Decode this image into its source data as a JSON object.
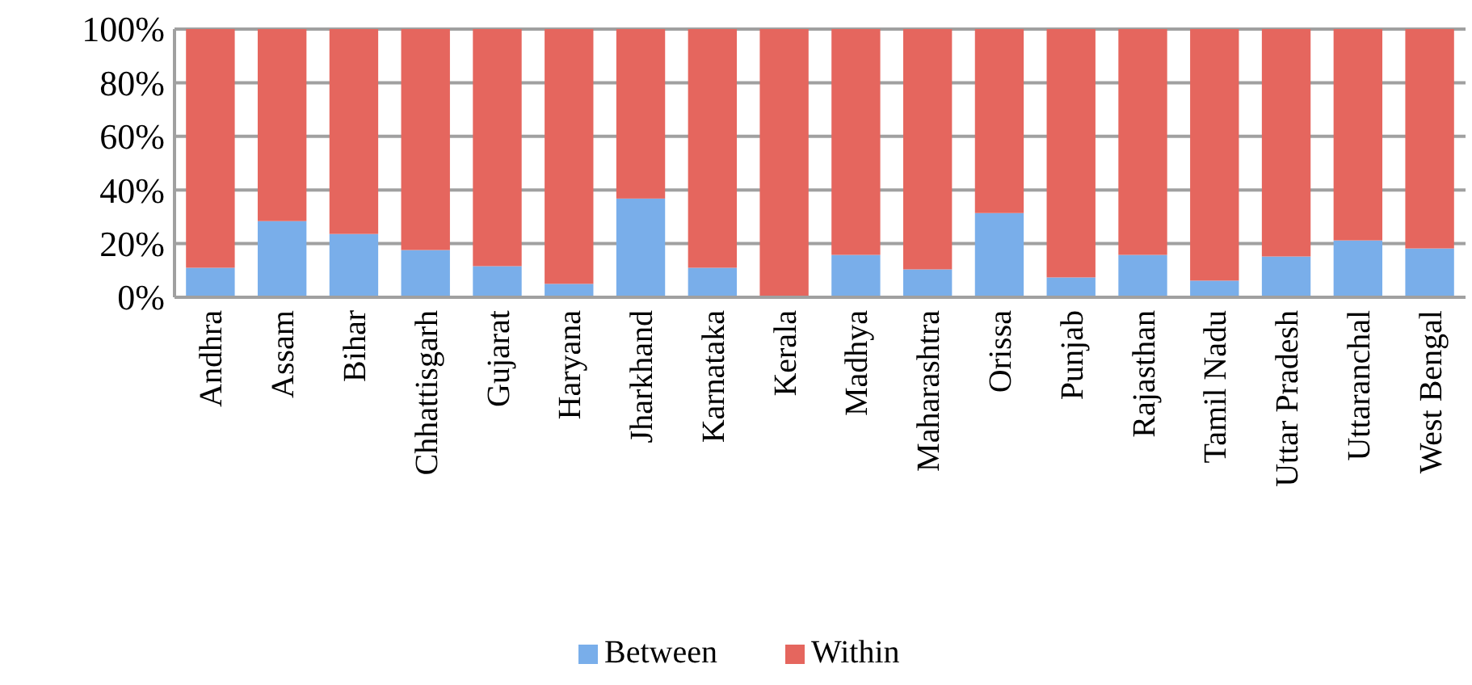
{
  "chart_data": {
    "type": "bar",
    "stacked": true,
    "categories": [
      "Andhra",
      "Assam",
      "Bihar",
      "Chhattisgarh",
      "Gujarat",
      "Haryana",
      "Jharkhand",
      "Karnataka",
      "Kerala",
      "Madhya",
      "Maharashtra",
      "Orissa",
      "Punjab",
      "Rajasthan",
      "Tamil Nadu",
      "Uttar Pradesh",
      "Uttaranchal",
      "West Bengal"
    ],
    "series": [
      {
        "name": "Between",
        "color": "#79aeea",
        "values": [
          11,
          28.4,
          23.6,
          17.6,
          11.6,
          5,
          36.8,
          11,
          null,
          15.8,
          10.4,
          31.4,
          7.4,
          15.8,
          6.2,
          15.2,
          21.2,
          18.2
        ]
      },
      {
        "name": "Within",
        "color": "#e5665e",
        "values": [
          89,
          71.6,
          76.4,
          82.4,
          88.4,
          95,
          63.2,
          89,
          100,
          84.2,
          89.6,
          68.6,
          92.6,
          84.2,
          93.8,
          84.8,
          78.8,
          81.8
        ]
      }
    ],
    "ylim": [
      0,
      100
    ],
    "yticks": [
      {
        "value": 0,
        "label": "0%"
      },
      {
        "value": 20,
        "label": "20%"
      },
      {
        "value": 40,
        "label": "40%"
      },
      {
        "value": 60,
        "label": "60%"
      },
      {
        "value": 80,
        "label": "80%"
      },
      {
        "value": 100,
        "label": "100%"
      }
    ],
    "grid": "y",
    "legend": "bottom"
  }
}
